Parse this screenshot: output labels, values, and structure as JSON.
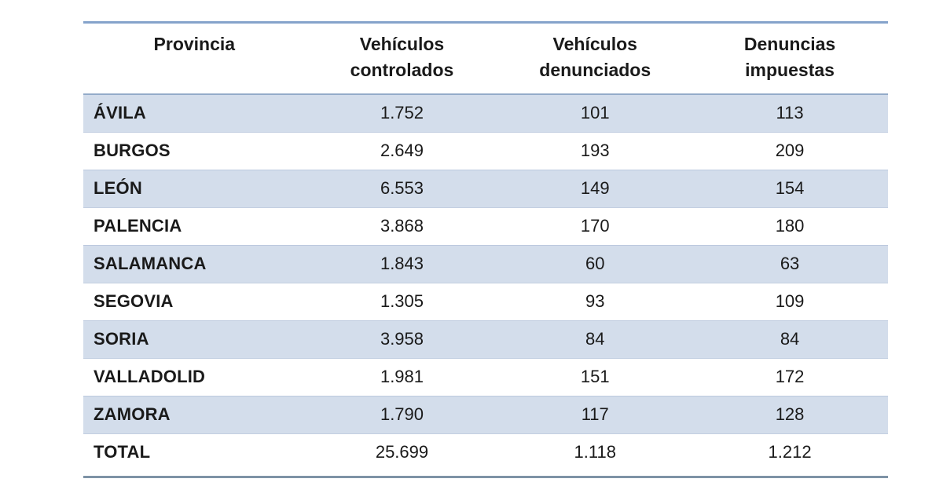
{
  "table": {
    "title_semantic": "Vehiculos controlados y denunciados por provincia",
    "columns": [
      {
        "line1": "Provincia",
        "line2": ""
      },
      {
        "line1": "Vehículos",
        "line2": "controlados"
      },
      {
        "line1": "Vehículos",
        "line2": "denunciados"
      },
      {
        "line1": "Denuncias",
        "line2": "impuestas"
      }
    ],
    "rows": [
      {
        "province": "ÁVILA",
        "controlled": "1.752",
        "denounced": "101",
        "fines": "113"
      },
      {
        "province": "BURGOS",
        "controlled": "2.649",
        "denounced": "193",
        "fines": "209"
      },
      {
        "province": "LEÓN",
        "controlled": "6.553",
        "denounced": "149",
        "fines": "154"
      },
      {
        "province": "PALENCIA",
        "controlled": "3.868",
        "denounced": "170",
        "fines": "180"
      },
      {
        "province": "SALAMANCA",
        "controlled": "1.843",
        "denounced": "60",
        "fines": "63"
      },
      {
        "province": "SEGOVIA",
        "controlled": "1.305",
        "denounced": "93",
        "fines": "109"
      },
      {
        "province": "SORIA",
        "controlled": "3.958",
        "denounced": "84",
        "fines": "84"
      },
      {
        "province": "VALLADOLID",
        "controlled": "1.981",
        "denounced": "151",
        "fines": "172"
      },
      {
        "province": "ZAMORA",
        "controlled": "1.790",
        "denounced": "117",
        "fines": "128"
      }
    ],
    "total": {
      "province": "TOTAL",
      "controlled": "25.699",
      "denounced": "1.118",
      "fines": "1.212"
    },
    "colors": {
      "row_shade": "#d3ddeb",
      "top_rule": "#85a3cb",
      "header_rule": "#93abc9",
      "bottom_rule": "#7e93a6",
      "text": "#1a1a1a"
    }
  }
}
